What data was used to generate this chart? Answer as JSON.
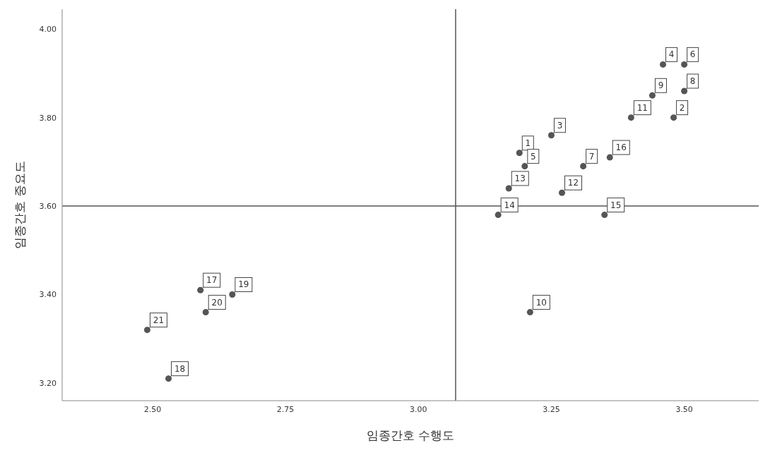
{
  "chart_data": {
    "type": "scatter",
    "xlabel": "임종간호 수행도",
    "ylabel": "임종간호 중요도",
    "x": [
      3.19,
      3.48,
      3.25,
      3.46,
      3.2,
      3.5,
      3.31,
      3.5,
      3.44,
      3.21,
      3.4,
      3.27,
      3.17,
      3.15,
      3.35,
      3.36,
      2.59,
      2.53,
      2.65,
      2.6,
      2.49
    ],
    "series": [
      {
        "color": "#555555",
        "values": [
          3.72,
          3.8,
          3.76,
          3.92,
          3.69,
          3.92,
          3.69,
          3.86,
          3.85,
          3.36,
          3.8,
          3.63,
          3.64,
          3.58,
          3.58,
          3.71,
          3.41,
          3.21,
          3.4,
          3.36,
          3.32
        ]
      }
    ],
    "marker": "circle",
    "grid": false,
    "legend": false,
    "xlim": [
      2.33,
      3.64
    ],
    "ylim": [
      3.16,
      4.045
    ],
    "xticks": [
      {
        "value": 2.5,
        "label": "2.50"
      },
      {
        "value": 2.75,
        "label": "2.75"
      },
      {
        "value": 3,
        "label": "3.00"
      },
      {
        "value": 3.25,
        "label": "3.25"
      },
      {
        "value": 3.5,
        "label": "3.50"
      }
    ],
    "yticks": [
      {
        "value": 3.2,
        "label": "3.20"
      },
      {
        "value": 3.4,
        "label": "3.40"
      },
      {
        "value": 3.6,
        "label": "3.60"
      },
      {
        "value": 3.8,
        "label": "3.80"
      },
      {
        "value": 4,
        "label": "4.00"
      }
    ],
    "ref_lines": [
      {
        "axis": "x",
        "value": 3.07,
        "color": "#555555"
      },
      {
        "axis": "y",
        "value": 3.6,
        "color": "#555555"
      }
    ],
    "annotations": [
      {
        "text": "1",
        "x": 3.19,
        "y": 3.72
      },
      {
        "text": "2",
        "x": 3.48,
        "y": 3.8
      },
      {
        "text": "3",
        "x": 3.25,
        "y": 3.76
      },
      {
        "text": "4",
        "x": 3.46,
        "y": 3.92
      },
      {
        "text": "5",
        "x": 3.2,
        "y": 3.69
      },
      {
        "text": "6",
        "x": 3.5,
        "y": 3.92
      },
      {
        "text": "7",
        "x": 3.31,
        "y": 3.69
      },
      {
        "text": "8",
        "x": 3.5,
        "y": 3.86
      },
      {
        "text": "9",
        "x": 3.44,
        "y": 3.85
      },
      {
        "text": "10",
        "x": 3.21,
        "y": 3.36
      },
      {
        "text": "11",
        "x": 3.4,
        "y": 3.8
      },
      {
        "text": "12",
        "x": 3.27,
        "y": 3.63
      },
      {
        "text": "13",
        "x": 3.17,
        "y": 3.64
      },
      {
        "text": "14",
        "x": 3.15,
        "y": 3.58
      },
      {
        "text": "15",
        "x": 3.35,
        "y": 3.58
      },
      {
        "text": "16",
        "x": 3.36,
        "y": 3.71
      },
      {
        "text": "17",
        "x": 2.59,
        "y": 3.41
      },
      {
        "text": "18",
        "x": 2.53,
        "y": 3.21
      },
      {
        "text": "19",
        "x": 2.65,
        "y": 3.4
      },
      {
        "text": "20",
        "x": 2.6,
        "y": 3.36
      },
      {
        "text": "21",
        "x": 2.49,
        "y": 3.32
      }
    ]
  }
}
